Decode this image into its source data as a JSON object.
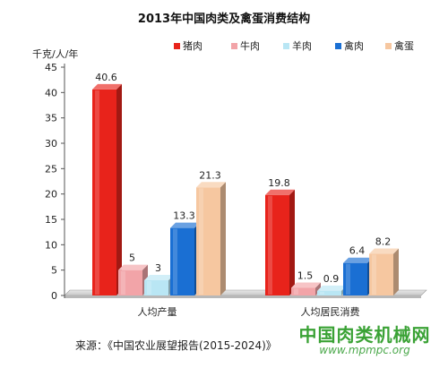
{
  "chart_data": {
    "type": "bar",
    "title": "2013年中国肉类及禽蛋消费结构",
    "ylabel": "千克/人/年",
    "categories": [
      "人均产量",
      "人均居民消费"
    ],
    "series": [
      {
        "name": "猪肉",
        "values": [
          40.6,
          19.8
        ],
        "color": "#e8231b"
      },
      {
        "name": "牛肉",
        "values": [
          5,
          1.5
        ],
        "color": "#f2a4a8"
      },
      {
        "name": "羊肉",
        "values": [
          3,
          0.9
        ],
        "color": "#b9e6f4"
      },
      {
        "name": "禽肉",
        "values": [
          13.3,
          6.4
        ],
        "color": "#1a6fd3"
      },
      {
        "name": "禽蛋",
        "values": [
          21.3,
          8.2
        ],
        "color": "#f6c7a0"
      }
    ],
    "data_labels": [
      [
        "40.6",
        "5",
        "3",
        "13.3",
        "21.3"
      ],
      [
        "19.8",
        "1.5",
        "0.9",
        "6.4",
        "8.2"
      ]
    ],
    "ylim": [
      0,
      45
    ],
    "yticks": [
      0,
      5,
      10,
      15,
      20,
      25,
      30,
      35,
      40,
      45
    ],
    "legend_position": "top-right",
    "grid": false
  },
  "source": "来源：《中国农业展望报告(2015-2024)》",
  "watermark": {
    "name": "中国肉类机械网",
    "url": "www.mpmpc.org"
  }
}
